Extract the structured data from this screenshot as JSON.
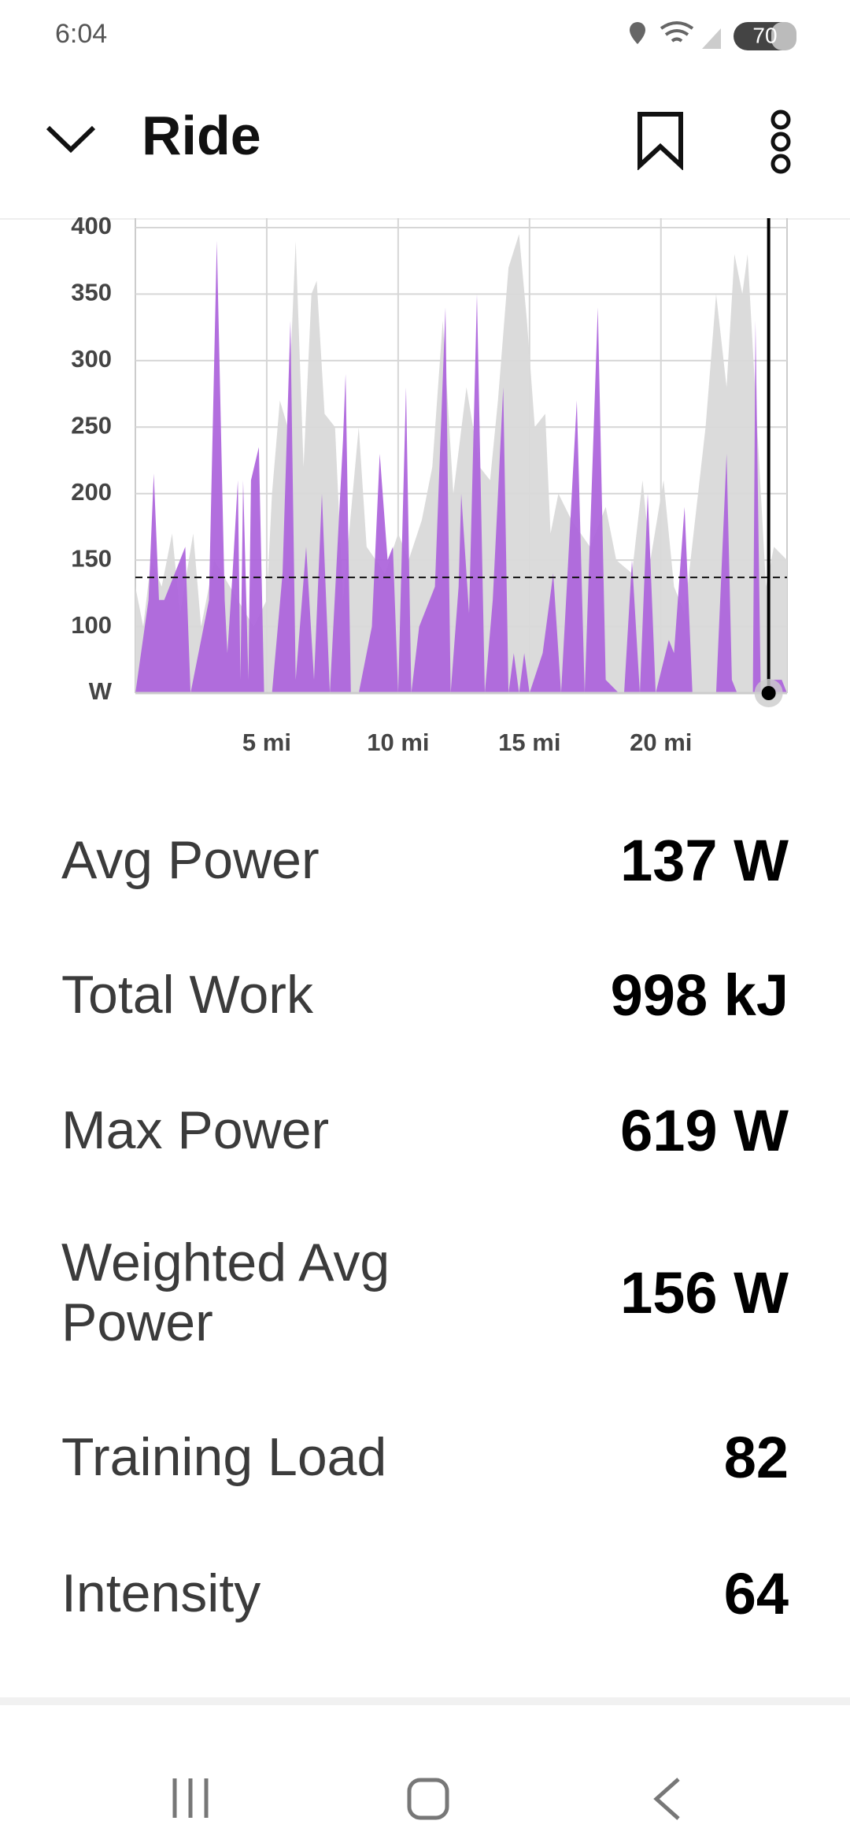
{
  "status_bar": {
    "time": "6:04",
    "battery": "70"
  },
  "header": {
    "title": "Ride"
  },
  "chart_data": {
    "type": "area",
    "xlim": [
      0,
      24.8
    ],
    "ylim": [
      50,
      400
    ],
    "xticks": [
      {
        "value": 5,
        "label": "5 mi"
      },
      {
        "value": 10,
        "label": "10 mi"
      },
      {
        "value": 15,
        "label": "15 mi"
      },
      {
        "value": 20,
        "label": "20 mi"
      }
    ],
    "yticks": [
      {
        "value": 50,
        "label": "W"
      },
      100,
      150,
      200,
      250,
      300,
      350,
      400
    ],
    "grid": true,
    "reference_line": 137,
    "cursor_x": 24.1,
    "series": [
      {
        "color": "#d9d9d9",
        "x": [
          0,
          0.3,
          0.6,
          1.0,
          1.4,
          1.7,
          2.2,
          2.5,
          3.0,
          4.5,
          5.0,
          5.2,
          5.5,
          5.8,
          6.1,
          6.4,
          6.7,
          6.9,
          7.2,
          7.6,
          7.9,
          8.5,
          8.8,
          9.5,
          10.0,
          10.4,
          10.9,
          11.3,
          11.7,
          12.1,
          12.6,
          13.1,
          13.5,
          13.8,
          14.2,
          14.6,
          14.9,
          15.2,
          15.6,
          15.8,
          16.1,
          16.6,
          17.3,
          17.9,
          18.3,
          18.9,
          19.3,
          19.6,
          20.1,
          20.5,
          20.9,
          21.3,
          21.7,
          22.1,
          22.5,
          22.8,
          23.1,
          23.3,
          24.0,
          24.3,
          24.8
        ],
        "values": [
          130,
          100,
          150,
          130,
          170,
          110,
          170,
          100,
          150,
          100,
          120,
          200,
          270,
          250,
          390,
          220,
          350,
          360,
          260,
          250,
          120,
          250,
          160,
          140,
          170,
          150,
          180,
          220,
          330,
          200,
          280,
          220,
          210,
          270,
          370,
          395,
          330,
          250,
          260,
          170,
          200,
          180,
          160,
          190,
          150,
          140,
          210,
          150,
          210,
          130,
          110,
          180,
          250,
          350,
          280,
          380,
          350,
          380,
          130,
          160,
          150
        ]
      },
      {
        "color": "#ae66dc",
        "x": [
          0,
          0.5,
          0.7,
          0.9,
          1.1,
          1.5,
          1.9,
          2.1,
          2.5,
          2.8,
          3.1,
          3.4,
          3.5,
          3.7,
          3.9,
          4.0,
          4.1,
          4.3,
          4.4,
          4.7,
          4.9,
          5.2,
          5.6,
          5.9,
          6.1,
          6.5,
          6.8,
          7.1,
          7.4,
          7.9,
          8.0,
          8.2,
          8.5,
          9.0,
          9.3,
          9.6,
          9.8,
          10.0,
          10.3,
          10.5,
          10.8,
          11.4,
          11.8,
          12.0,
          12.3,
          12.4,
          12.7,
          13.0,
          13.3,
          13.6,
          14.0,
          14.2,
          14.4,
          14.6,
          14.8,
          15.0,
          15.5,
          15.9,
          16.2,
          16.8,
          17.1,
          17.6,
          17.9,
          18.4,
          18.6,
          18.9,
          19.2,
          19.5,
          19.8,
          20.3,
          20.5,
          20.9,
          21.2,
          21.6,
          22.1,
          22.5,
          22.7,
          22.9,
          23.5,
          23.6,
          23.8,
          24.2,
          24.3,
          24.6,
          24.8
        ],
        "values": [
          50,
          120,
          215,
          120,
          120,
          140,
          160,
          50,
          90,
          120,
          390,
          120,
          80,
          140,
          210,
          60,
          210,
          60,
          210,
          235,
          50,
          50,
          140,
          330,
          60,
          160,
          60,
          200,
          50,
          240,
          290,
          50,
          50,
          100,
          230,
          150,
          160,
          50,
          280,
          50,
          100,
          130,
          340,
          50,
          130,
          200,
          110,
          350,
          50,
          120,
          280,
          50,
          80,
          50,
          80,
          50,
          80,
          140,
          50,
          270,
          50,
          340,
          60,
          50,
          50,
          150,
          50,
          200,
          50,
          90,
          80,
          190,
          50,
          50,
          50,
          230,
          60,
          50,
          50,
          330,
          50,
          60,
          60,
          60,
          50
        ]
      }
    ]
  },
  "stats": [
    {
      "label": "Avg Power",
      "value": "137 W"
    },
    {
      "label": "Total Work",
      "value": "998 kJ"
    },
    {
      "label": "Max Power",
      "value": "619 W"
    },
    {
      "label": "Weighted Avg Power",
      "value": "156 W"
    },
    {
      "label": "Training Load",
      "value": "82"
    },
    {
      "label": "Intensity",
      "value": "64"
    }
  ]
}
